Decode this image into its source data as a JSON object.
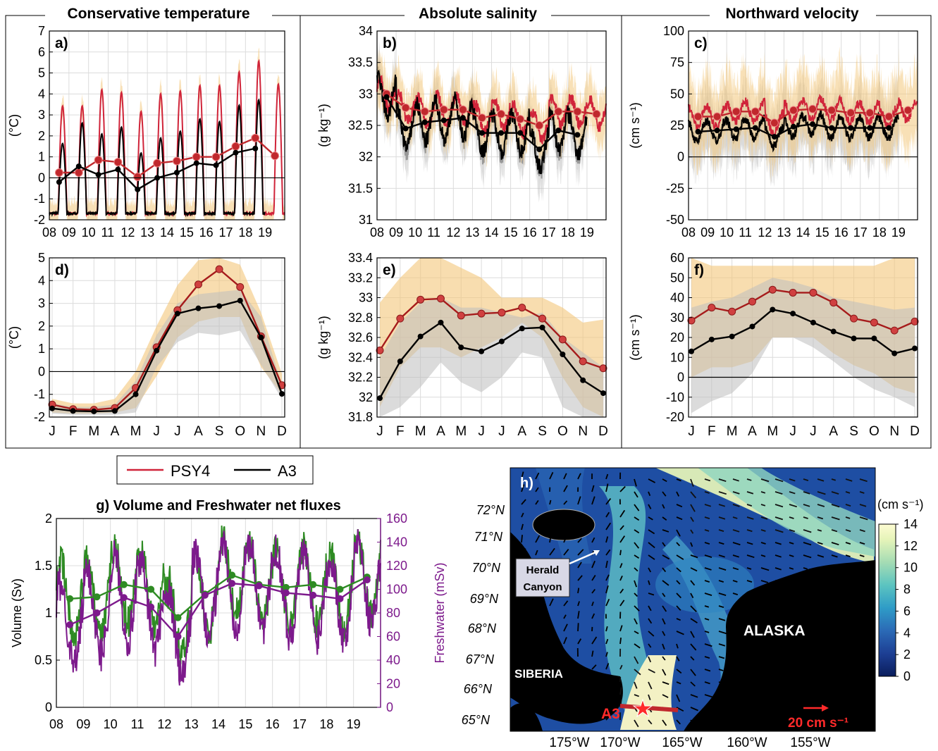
{
  "section_titles": {
    "temperature": "Conservative temperature",
    "salinity": "Absolute salinity",
    "velocity": "Northward velocity"
  },
  "legend": {
    "psy4": "PSY4",
    "a3": "A3"
  },
  "colors": {
    "psy4": "#d0243a",
    "a3": "#000000",
    "psy4_band": "#f3c77a",
    "a3_band": "#bdbdbd",
    "psy4_marker": "#c0282d",
    "volume": "#2e8b23",
    "freshwater": "#7d1a8c"
  },
  "chart_data": [
    {
      "panel": "a)",
      "type": "line",
      "ylabel": "(°C)",
      "ylim": [
        -2,
        7
      ],
      "yticks": [
        "-2",
        "-1",
        "0",
        "1",
        "2",
        "3",
        "4",
        "5",
        "6",
        "7"
      ],
      "xtick_labels": [
        "08",
        "09",
        "10",
        "11",
        "12",
        "13",
        "14",
        "15",
        "16",
        "17",
        "18",
        "19"
      ],
      "xlim": [
        2008,
        2020
      ],
      "series": [
        {
          "name": "PSY4",
          "annual_means_x": [
            2008.5,
            2009.5,
            2010.5,
            2011.5,
            2012.5,
            2013.5,
            2014.5,
            2015.5,
            2016.5,
            2017.5,
            2018.5,
            2019.5
          ],
          "annual_means": [
            0.25,
            0.25,
            0.85,
            0.75,
            0.05,
            0.7,
            0.8,
            1.0,
            1.0,
            1.5,
            1.9,
            1.05
          ]
        },
        {
          "name": "A3",
          "annual_means_x": [
            2008.5,
            2009.5,
            2010.5,
            2011.5,
            2012.5,
            2013.5,
            2014.5,
            2015.5,
            2016.5,
            2017.5,
            2018.5
          ],
          "annual_means": [
            -0.2,
            0.55,
            0.15,
            0.4,
            -0.55,
            0.0,
            0.25,
            0.7,
            0.6,
            1.2,
            1.4
          ]
        }
      ]
    },
    {
      "panel": "b)",
      "type": "line",
      "ylabel": "(g kg⁻¹)",
      "ylim": [
        31,
        34
      ],
      "yticks": [
        "31",
        "31.5",
        "32",
        "32.5",
        "33",
        "33.5",
        "34"
      ],
      "xtick_labels": [
        "08",
        "09",
        "10",
        "11",
        "12",
        "13",
        "14",
        "15",
        "16",
        "17",
        "18",
        "19"
      ],
      "xlim": [
        2008,
        2020
      ],
      "series": [
        {
          "name": "PSY4",
          "annual_means_x": [
            2008.5,
            2009.5,
            2010.5,
            2011.5,
            2012.5,
            2013.5,
            2014.5,
            2015.5,
            2016.5,
            2017.5,
            2018.5,
            2019.5
          ],
          "annual_means": [
            33.0,
            32.78,
            32.72,
            32.75,
            32.75,
            32.62,
            32.68,
            32.6,
            32.5,
            32.72,
            32.72,
            32.68
          ]
        },
        {
          "name": "A3",
          "annual_means_x": [
            2008.5,
            2009.5,
            2010.5,
            2011.5,
            2012.5,
            2013.5,
            2014.5,
            2015.5,
            2016.5,
            2017.5,
            2018.5
          ],
          "annual_means": [
            32.95,
            32.45,
            32.55,
            32.58,
            32.62,
            32.38,
            32.38,
            32.38,
            32.12,
            32.42,
            32.35
          ]
        }
      ]
    },
    {
      "panel": "c)",
      "type": "line",
      "ylabel": "(cm s⁻¹)",
      "ylim": [
        -50,
        100
      ],
      "yticks": [
        "-50",
        "-25",
        "0",
        "25",
        "50",
        "75",
        "100"
      ],
      "xtick_labels": [
        "08",
        "09",
        "10",
        "11",
        "12",
        "13",
        "14",
        "15",
        "16",
        "17",
        "18",
        "19"
      ],
      "xlim": [
        2008,
        2020
      ],
      "series": [
        {
          "name": "PSY4",
          "annual_means_x": [
            2008.5,
            2009.5,
            2010.5,
            2011.5,
            2012.5,
            2013.5,
            2014.5,
            2015.5,
            2016.5,
            2017.5,
            2018.5,
            2019.5
          ],
          "annual_means": [
            32,
            32,
            36,
            36,
            27,
            37,
            38,
            37,
            35,
            35,
            32,
            37
          ]
        },
        {
          "name": "A3",
          "annual_means_x": [
            2008.5,
            2009.5,
            2010.5,
            2011.5,
            2012.5,
            2013.5,
            2014.5,
            2015.5,
            2016.5,
            2017.5,
            2018.5
          ],
          "annual_means": [
            20,
            21,
            22,
            23,
            16,
            24,
            26,
            23,
            23,
            23,
            23
          ]
        }
      ]
    },
    {
      "panel": "d)",
      "type": "line",
      "ylabel": "(°C)",
      "ylim": [
        -2,
        5
      ],
      "yticks": [
        "-2",
        "-1",
        "0",
        "1",
        "2",
        "3",
        "4",
        "5"
      ],
      "categories": [
        "J",
        "F",
        "M",
        "A",
        "M",
        "J",
        "J",
        "A",
        "S",
        "O",
        "N",
        "D"
      ],
      "series": [
        {
          "name": "PSY4",
          "values": [
            -1.45,
            -1.65,
            -1.68,
            -1.6,
            -0.72,
            1.07,
            2.7,
            3.83,
            4.5,
            3.72,
            1.55,
            -0.6
          ],
          "band_upper": [
            -1.2,
            -1.4,
            -1.4,
            -1.2,
            0.0,
            2.0,
            3.8,
            4.9,
            5.2,
            4.7,
            2.6,
            -0.1
          ],
          "band_lower": [
            -1.8,
            -1.85,
            -1.85,
            -1.8,
            -1.6,
            -0.2,
            1.5,
            2.2,
            2.4,
            2.4,
            0.2,
            -1.0
          ]
        },
        {
          "name": "A3",
          "values": [
            -1.62,
            -1.73,
            -1.75,
            -1.73,
            -1.0,
            0.92,
            2.55,
            2.78,
            2.88,
            3.12,
            1.5,
            -0.98
          ],
          "band_upper": [
            -1.4,
            -1.55,
            -1.55,
            -1.45,
            -0.4,
            1.6,
            3.0,
            3.4,
            3.5,
            3.6,
            2.4,
            -0.6
          ],
          "band_lower": [
            -1.85,
            -1.9,
            -1.9,
            -1.9,
            -1.8,
            0.2,
            1.3,
            1.7,
            1.6,
            1.8,
            0.3,
            -1.2
          ]
        }
      ]
    },
    {
      "panel": "e)",
      "type": "line",
      "ylabel": "(g kg⁻¹)",
      "ylim": [
        31.8,
        33.4
      ],
      "yticks": [
        "31.8",
        "32",
        "32.2",
        "32.4",
        "32.6",
        "32.8",
        "33",
        "33.2",
        "33.4"
      ],
      "categories": [
        "J",
        "F",
        "M",
        "A",
        "M",
        "J",
        "J",
        "A",
        "S",
        "O",
        "N",
        "D"
      ],
      "series": [
        {
          "name": "PSY4",
          "values": [
            32.47,
            32.79,
            32.98,
            32.99,
            32.82,
            32.84,
            32.85,
            32.9,
            32.79,
            32.58,
            32.36,
            32.29
          ],
          "band_upper": [
            32.95,
            33.2,
            33.5,
            33.5,
            33.3,
            33.2,
            33.0,
            33.0,
            33.0,
            32.9,
            32.75,
            32.78
          ],
          "band_lower": [
            31.9,
            32.3,
            32.5,
            32.5,
            32.4,
            32.5,
            32.6,
            32.75,
            32.6,
            32.2,
            31.9,
            31.8
          ]
        },
        {
          "name": "A3",
          "values": [
            31.99,
            32.36,
            32.61,
            32.75,
            32.5,
            32.46,
            32.56,
            32.69,
            32.7,
            32.43,
            32.17,
            32.04
          ],
          "band_upper": [
            32.4,
            32.75,
            32.95,
            33.0,
            32.9,
            32.9,
            32.85,
            32.8,
            32.85,
            32.6,
            32.45,
            32.3
          ],
          "band_lower": [
            31.8,
            31.9,
            32.1,
            32.35,
            32.15,
            32.05,
            32.2,
            32.45,
            32.4,
            31.9,
            31.8,
            31.8
          ]
        }
      ]
    },
    {
      "panel": "f)",
      "type": "line",
      "ylabel": "(cm s⁻¹)",
      "ylim": [
        -20,
        60
      ],
      "yticks": [
        "-20",
        "-10",
        "0",
        "10",
        "20",
        "30",
        "40",
        "50",
        "60"
      ],
      "categories": [
        "J",
        "F",
        "M",
        "A",
        "M",
        "J",
        "J",
        "A",
        "S",
        "O",
        "N",
        "D"
      ],
      "series": [
        {
          "name": "PSY4",
          "values": [
            28.5,
            35,
            33,
            38,
            44,
            42.5,
            42.5,
            37.5,
            29.5,
            27.5,
            23.5,
            28
          ],
          "band_upper": [
            63,
            56,
            56,
            56,
            56,
            56,
            56,
            56,
            56,
            56,
            60,
            62
          ],
          "band_lower": [
            0,
            5,
            5,
            8,
            20,
            20,
            20,
            12,
            6,
            2,
            -5,
            -8
          ]
        },
        {
          "name": "A3",
          "values": [
            13,
            19,
            20.5,
            25.5,
            34,
            32,
            27.5,
            23,
            19.5,
            19.5,
            12,
            14.5
          ],
          "band_upper": [
            35,
            38,
            40,
            45,
            50,
            48,
            45,
            40,
            38,
            36,
            34,
            35
          ],
          "band_lower": [
            -18,
            -12,
            -8,
            2,
            20,
            20,
            15,
            8,
            0,
            -6,
            -10,
            -15
          ]
        }
      ]
    },
    {
      "panel": "g)",
      "type": "line",
      "title": "g) Volume and Freshwater net fluxes",
      "ylabel": "Volume (Sv)",
      "ylim": [
        0,
        2
      ],
      "yticks": [
        "0",
        "0.5",
        "1",
        "1.5",
        "2"
      ],
      "ylabel_right": "Freshwater (mSv)",
      "ylim_right": [
        0,
        160
      ],
      "yticks_right": [
        "0",
        "20",
        "40",
        "60",
        "80",
        "100",
        "120",
        "140",
        "160"
      ],
      "xtick_labels": [
        "08",
        "09",
        "10",
        "11",
        "12",
        "13",
        "14",
        "15",
        "16",
        "17",
        "18",
        "19"
      ],
      "xlim": [
        2008,
        2020
      ],
      "series": [
        {
          "name": "Volume",
          "axis": "left",
          "annual_means_x": [
            2008.5,
            2009.5,
            2010.5,
            2011.5,
            2012.5,
            2013.5,
            2014.5,
            2015.5,
            2016.5,
            2017.5,
            2018.5,
            2019.5
          ],
          "annual_means": [
            1.15,
            1.17,
            1.3,
            1.25,
            0.95,
            1.2,
            1.4,
            1.3,
            1.27,
            1.3,
            1.25,
            1.38
          ]
        },
        {
          "name": "Freshwater",
          "axis": "right",
          "annual_means_x": [
            2008.5,
            2009.5,
            2010.5,
            2011.5,
            2012.5,
            2013.5,
            2014.5,
            2015.5,
            2016.5,
            2017.5,
            2018.5,
            2019.5
          ],
          "annual_means": [
            70,
            80,
            93,
            85,
            60,
            95,
            105,
            103,
            97,
            95,
            92,
            108
          ]
        }
      ]
    }
  ],
  "map": {
    "panel": "h)",
    "lat_labels": [
      "72°N",
      "71°N",
      "70°N",
      "69°N",
      "68°N",
      "67°N",
      "66°N",
      "65°N"
    ],
    "lon_labels": [
      "175°W",
      "170°W",
      "165°W",
      "160°W",
      "155°W"
    ],
    "labels": {
      "siberia": "SIBERIA",
      "alaska": "ALASKA",
      "herald": "Herald",
      "canyon": "Canyon",
      "station": "A3",
      "scale_arrow": "20 cm s⁻¹"
    },
    "colorbar_title": "(cm s⁻¹)",
    "colorbar_ticks": [
      "0",
      "2",
      "4",
      "6",
      "8",
      "10",
      "12",
      "14"
    ]
  }
}
